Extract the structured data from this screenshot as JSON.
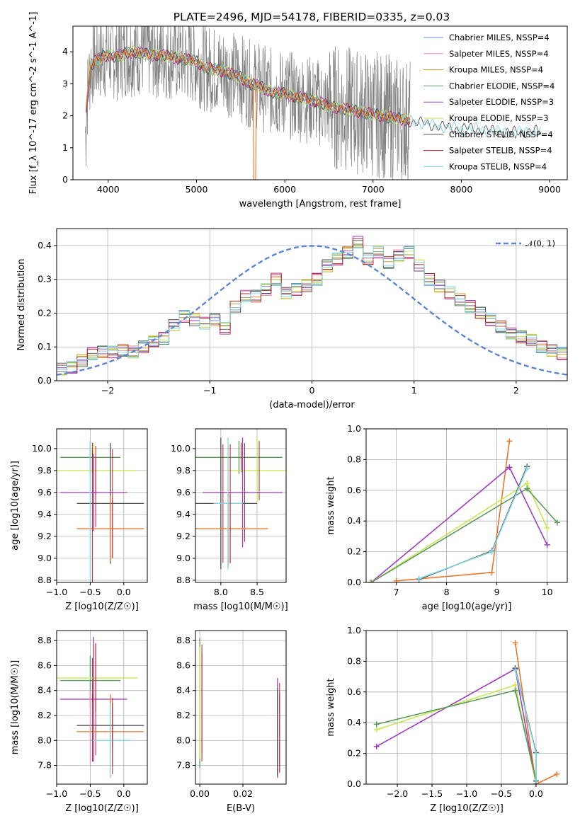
{
  "colors": {
    "chabrier_miles": "#6a8fd6",
    "salpeter_miles": "#f08fa8",
    "kroupa_miles": "#c79a1e",
    "chabrier_elodie": "#5a9a5a",
    "salpeter_elodie": "#a03cc0",
    "kroupa_elodie": "#c8e650",
    "chabrier_stelib": "#505050",
    "salpeter_stelib": "#b02020",
    "kroupa_stelib": "#7fd6e6",
    "data_gray": "#808080",
    "orange": "#e6772e",
    "normal": "#5b86d6",
    "teal": "#5f9ea0"
  },
  "chart_data": [
    {
      "id": "spectrum",
      "type": "line",
      "title": "PLATE=2496, MJD=54178, FIBERID=0335, z=0.03",
      "xlabel": "wavelength [Angstrom, rest frame]",
      "ylabel": "Flux [f_λ 10^-17 erg cm^-2 s^-1 A^-1]",
      "xlim": [
        3600,
        9200
      ],
      "ylim": [
        0,
        4.8
      ],
      "xticks": [
        "4000",
        "5000",
        "6000",
        "7000",
        "8000",
        "9000"
      ],
      "yticks": [
        "0",
        "1",
        "2",
        "3",
        "4"
      ],
      "grid": false,
      "legend_position": "top-right",
      "legend": [
        "Chabrier MILES, NSSP=4",
        "Salpeter MILES, NSSP=4",
        "Kroupa MILES, NSSP=4",
        "Chabrier ELODIE, NSSP=4",
        "Salpeter ELODIE, NSSP=3",
        "Kroupa ELODIE, NSSP=3",
        "Chabrier STELIB, NSSP=4",
        "Salpeter STELIB, NSSP=4",
        "Kroupa STELIB, NSSP=4"
      ],
      "model_x": [
        3750,
        3800,
        3900,
        4000,
        4100,
        4200,
        4300,
        4400,
        4500,
        4600,
        4700,
        4800,
        4900,
        5000,
        5100,
        5200,
        5300,
        5400,
        5500,
        5600,
        5700,
        5800,
        5900,
        6000,
        6100,
        6200,
        6300,
        6400,
        6500,
        6600,
        6700,
        6800,
        6900,
        7000,
        7100,
        7200,
        7300,
        7400,
        7500,
        7600,
        7700,
        7800,
        7900,
        8000,
        8100,
        8200,
        8300,
        8400,
        8500,
        8600,
        8700,
        8800,
        8900
      ],
      "model_y": [
        2.2,
        3.6,
        3.8,
        3.9,
        3.85,
        3.95,
        4.0,
        3.95,
        3.9,
        3.9,
        3.85,
        3.8,
        3.75,
        3.7,
        3.5,
        3.45,
        3.4,
        3.3,
        3.2,
        3.0,
        2.95,
        2.8,
        2.7,
        2.7,
        2.6,
        2.55,
        2.5,
        2.4,
        2.3,
        2.25,
        2.2,
        2.15,
        2.1,
        2.05,
        2.0,
        1.95,
        1.9,
        1.85,
        1.8,
        1.75,
        1.7,
        1.65,
        1.62,
        1.6,
        1.6,
        1.58,
        1.55,
        1.5,
        1.5,
        1.48,
        1.5,
        1.52,
        1.5
      ]
    },
    {
      "id": "residuals",
      "type": "line",
      "xlabel": "(data-model)/error",
      "ylabel": "Normed distribution",
      "xlim": [
        -2.5,
        2.5
      ],
      "ylim": [
        0,
        0.45
      ],
      "xticks": [
        "−2",
        "−1",
        "0",
        "1",
        "2"
      ],
      "yticks": [
        "0.0",
        "0.1",
        "0.2",
        "0.3",
        "0.4"
      ],
      "grid": true,
      "legend_position": "top-right",
      "legend": [
        "𝒩(0, 1)"
      ],
      "bin_edges_start": -2.5,
      "bin_width": 0.1,
      "hist_values": [
        0.035,
        0.04,
        0.06,
        0.08,
        0.085,
        0.085,
        0.09,
        0.085,
        0.1,
        0.115,
        0.125,
        0.165,
        0.19,
        0.18,
        0.17,
        0.18,
        0.155,
        0.22,
        0.25,
        0.25,
        0.27,
        0.3,
        0.26,
        0.27,
        0.28,
        0.3,
        0.34,
        0.36,
        0.38,
        0.41,
        0.36,
        0.38,
        0.35,
        0.37,
        0.38,
        0.34,
        0.3,
        0.28,
        0.26,
        0.24,
        0.22,
        0.2,
        0.18,
        0.16,
        0.14,
        0.13,
        0.12,
        0.1,
        0.09,
        0.08,
        0.075,
        0.07,
        0.07,
        0.065,
        0.06
      ]
    },
    {
      "id": "age-vs-Z",
      "type": "scatter",
      "xlabel": "Z [log10(Z/Z☉)]",
      "ylabel": "age  [log10(age/yr)]",
      "xlim": [
        -1.0,
        0.35
      ],
      "ylim": [
        8.78,
        10.18
      ],
      "xticks": [
        "−1.0",
        "−0.5",
        "0.0"
      ],
      "yticks": [
        "8.8",
        "9.0",
        "9.2",
        "9.4",
        "9.6",
        "9.8",
        "10.0"
      ],
      "grid": true,
      "points": [
        {
          "x": -0.5,
          "y": 9.92,
          "xerr": 0.45,
          "yerr": 0.15
        },
        {
          "x": -0.45,
          "y": 9.8,
          "xerr": 0.65,
          "yerr": 0.25
        },
        {
          "x": -0.45,
          "y": 9.6,
          "xerr": 0.5,
          "yerr": 0.35
        },
        {
          "x": -0.2,
          "y": 9.5,
          "xerr": 0.5,
          "yerr": 0.55
        },
        {
          "x": -0.2,
          "y": 9.27,
          "xerr": 0.5,
          "yerr": 0.3
        },
        {
          "x": -0.5,
          "y": 9.27,
          "xerr": 0.0,
          "yerr": 0.8
        }
      ]
    },
    {
      "id": "age-vs-mass",
      "type": "scatter",
      "xlabel": "mass [log10(M/M☉)]",
      "ylabel": "",
      "xlim": [
        7.65,
        8.9
      ],
      "ylim": [
        8.78,
        10.18
      ],
      "xticks": [
        "8.0",
        "8.5"
      ],
      "yticks": [
        "8.8",
        "9.0",
        "9.2",
        "9.4",
        "9.6",
        "9.8",
        "10.0"
      ],
      "grid": true,
      "points": [
        {
          "x": 8.25,
          "y": 9.92,
          "xerr": 0.6,
          "yerr": 0.15
        },
        {
          "x": 8.5,
          "y": 9.8,
          "xerr": 0.4,
          "yerr": 0.3
        },
        {
          "x": 8.3,
          "y": 9.6,
          "xerr": 0.55,
          "yerr": 0.5
        },
        {
          "x": 8.0,
          "y": 9.5,
          "xerr": 0.5,
          "yerr": 0.6
        },
        {
          "x": 8.1,
          "y": 9.27,
          "xerr": 0.55,
          "yerr": 0.35
        },
        {
          "x": 8.1,
          "y": 9.5,
          "xerr": 0.2,
          "yerr": 0.6
        }
      ]
    },
    {
      "id": "weight-vs-age",
      "type": "line",
      "xlabel": "age  [log10(age/yr)]",
      "ylabel": "mass weight",
      "xlim": [
        6.4,
        10.4
      ],
      "ylim": [
        0.0,
        1.0
      ],
      "xticks": [
        "7",
        "8",
        "9",
        "10"
      ],
      "yticks": [
        "0.0",
        "0.2",
        "0.4",
        "0.6",
        "0.8",
        "1.0"
      ],
      "grid": true,
      "series": [
        {
          "color": "orange",
          "x": [
            7.0,
            8.9,
            9.25
          ],
          "y": [
            0.01,
            0.065,
            0.92
          ]
        },
        {
          "color": "salpeter_elodie",
          "x": [
            6.5,
            9.25,
            10.0
          ],
          "y": [
            0.0,
            0.75,
            0.245
          ]
        },
        {
          "color": "kroupa_elodie",
          "x": [
            6.5,
            9.6,
            10.0
          ],
          "y": [
            0.0,
            0.645,
            0.355
          ]
        },
        {
          "color": "chabrier_elodie",
          "x": [
            6.5,
            9.6,
            10.2
          ],
          "y": [
            0.0,
            0.61,
            0.39
          ]
        },
        {
          "color": "chabrier_stelib",
          "x": [
            7.45,
            8.9,
            9.6
          ],
          "y": [
            0.02,
            0.205,
            0.755
          ]
        },
        {
          "color": "kroupa_stelib",
          "x": [
            7.45,
            8.9,
            9.6
          ],
          "y": [
            0.025,
            0.2,
            0.745
          ]
        }
      ]
    },
    {
      "id": "mass-vs-Z",
      "type": "scatter",
      "xlabel": "Z [log10(Z/Z☉)]",
      "ylabel": "mass [log10(M/M☉)]",
      "xlim": [
        -1.0,
        0.35
      ],
      "ylim": [
        7.65,
        8.88
      ],
      "xticks": [
        "−1.0",
        "−0.5",
        "0.0"
      ],
      "yticks": [
        "7.8",
        "8.0",
        "8.2",
        "8.4",
        "8.6",
        "8.8"
      ],
      "grid": true,
      "points": [
        {
          "x": -0.5,
          "y": 8.48,
          "xerr": 0.45,
          "yerr": 0.2
        },
        {
          "x": -0.45,
          "y": 8.5,
          "xerr": 0.65,
          "yerr": 0.3
        },
        {
          "x": -0.45,
          "y": 8.33,
          "xerr": 0.5,
          "yerr": 0.5
        },
        {
          "x": -0.2,
          "y": 8.12,
          "xerr": 0.5,
          "yerr": 0.2
        },
        {
          "x": -0.2,
          "y": 8.07,
          "xerr": 0.5,
          "yerr": 0.3
        },
        {
          "x": -0.2,
          "y": 8.0,
          "xerr": 0.3,
          "yerr": 0.3
        },
        {
          "x": -0.5,
          "y": 8.1,
          "xerr": 0.0,
          "yerr": 0.3
        }
      ]
    },
    {
      "id": "mass-vs-ebv",
      "type": "scatter",
      "xlabel": "E(B-V)",
      "ylabel": "",
      "xlim": [
        -0.002,
        0.04
      ],
      "ylim": [
        7.65,
        8.88
      ],
      "xticks": [
        "0.00",
        "0.02"
      ],
      "yticks": [
        "7.8",
        "8.0",
        "8.2",
        "8.4",
        "8.6",
        "8.8"
      ],
      "grid": true,
      "points": [
        {
          "x": 0.0,
          "y": 8.3,
          "xerr": 0.0,
          "yerr": 0.52
        },
        {
          "x": 0.0,
          "y": 8.3,
          "xerr": 0.0,
          "yerr": 0.45
        },
        {
          "x": 0.036,
          "y": 8.1,
          "xerr": 0.0,
          "yerr": 0.4
        },
        {
          "x": 0.036,
          "y": 8.07,
          "xerr": 0.0,
          "yerr": 0.35
        }
      ]
    },
    {
      "id": "weight-vs-Z",
      "type": "line",
      "xlabel": "Z [log10(Z/Z☉)]",
      "ylabel": "mass weight",
      "xlim": [
        -2.45,
        0.45
      ],
      "ylim": [
        0.0,
        1.0
      ],
      "xticks": [
        "−2.0",
        "−1.5",
        "−1.0",
        "−0.5",
        "0.0"
      ],
      "yticks": [
        "0.0",
        "0.2",
        "0.4",
        "0.6",
        "0.8",
        "1.0"
      ],
      "grid": true,
      "series": [
        {
          "color": "orange",
          "x": [
            -0.3,
            0.0,
            0.3
          ],
          "y": [
            0.92,
            0.0,
            0.065
          ]
        },
        {
          "color": "salpeter_elodie",
          "x": [
            -2.3,
            -0.3,
            0.0
          ],
          "y": [
            0.245,
            0.75,
            0.0
          ]
        },
        {
          "color": "kroupa_elodie",
          "x": [
            -2.3,
            -0.3,
            0.0
          ],
          "y": [
            0.355,
            0.645,
            0.0
          ]
        },
        {
          "color": "chabrier_elodie",
          "x": [
            -2.3,
            -0.3,
            0.0
          ],
          "y": [
            0.39,
            0.61,
            0.02
          ]
        },
        {
          "color": "chabrier_stelib",
          "x": [
            -0.3,
            0.0,
            0.0
          ],
          "y": [
            0.755,
            0.205,
            0.02
          ]
        },
        {
          "color": "kroupa_stelib",
          "x": [
            -0.3,
            0.0,
            0.0
          ],
          "y": [
            0.745,
            0.2,
            0.025
          ]
        }
      ]
    }
  ]
}
